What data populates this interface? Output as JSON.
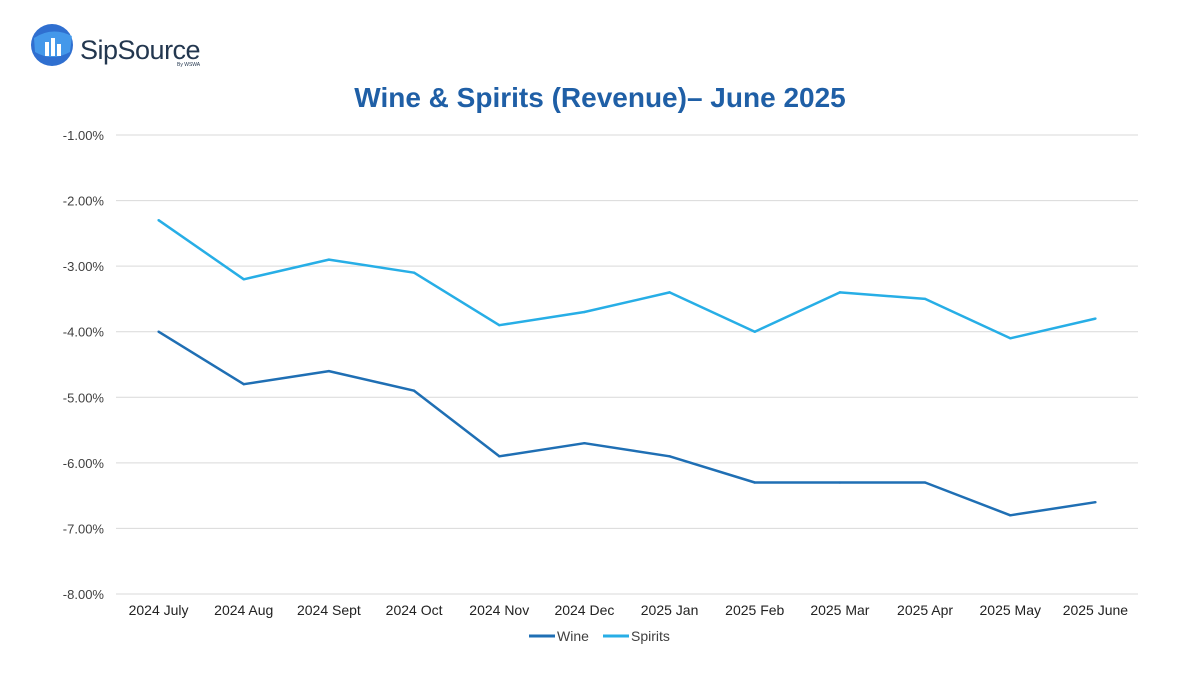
{
  "logo": {
    "text": "SipSource",
    "subtext": "By WSWA"
  },
  "chart_data": {
    "type": "line",
    "title": "Wine & Spirits (Revenue)– June 2025",
    "categories": [
      "2024 July",
      "2024 Aug",
      "2024 Sept",
      "2024 Oct",
      "2024 Nov",
      "2024 Dec",
      "2025 Jan",
      "2025 Feb",
      "2025 Mar",
      "2025 Apr",
      "2025 May",
      "2025 June"
    ],
    "series": [
      {
        "name": "Wine",
        "color": "#1f6fb4",
        "values": [
          -4.0,
          -4.8,
          -4.6,
          -4.9,
          -5.9,
          -5.7,
          -5.9,
          -6.3,
          -6.3,
          -6.3,
          -6.8,
          -6.6
        ]
      },
      {
        "name": "Spirits",
        "color": "#27aee6",
        "values": [
          -2.3,
          -3.2,
          -2.9,
          -3.1,
          -3.9,
          -3.7,
          -3.4,
          -4.0,
          -3.4,
          -3.5,
          -4.1,
          -3.8
        ]
      }
    ],
    "ylim": [
      -8.0,
      -1.0
    ],
    "yticks": [
      "-1.00%",
      "-2.00%",
      "-3.00%",
      "-4.00%",
      "-5.00%",
      "-6.00%",
      "-7.00%",
      "-8.00%"
    ],
    "grid": true,
    "legend": "bottom"
  }
}
